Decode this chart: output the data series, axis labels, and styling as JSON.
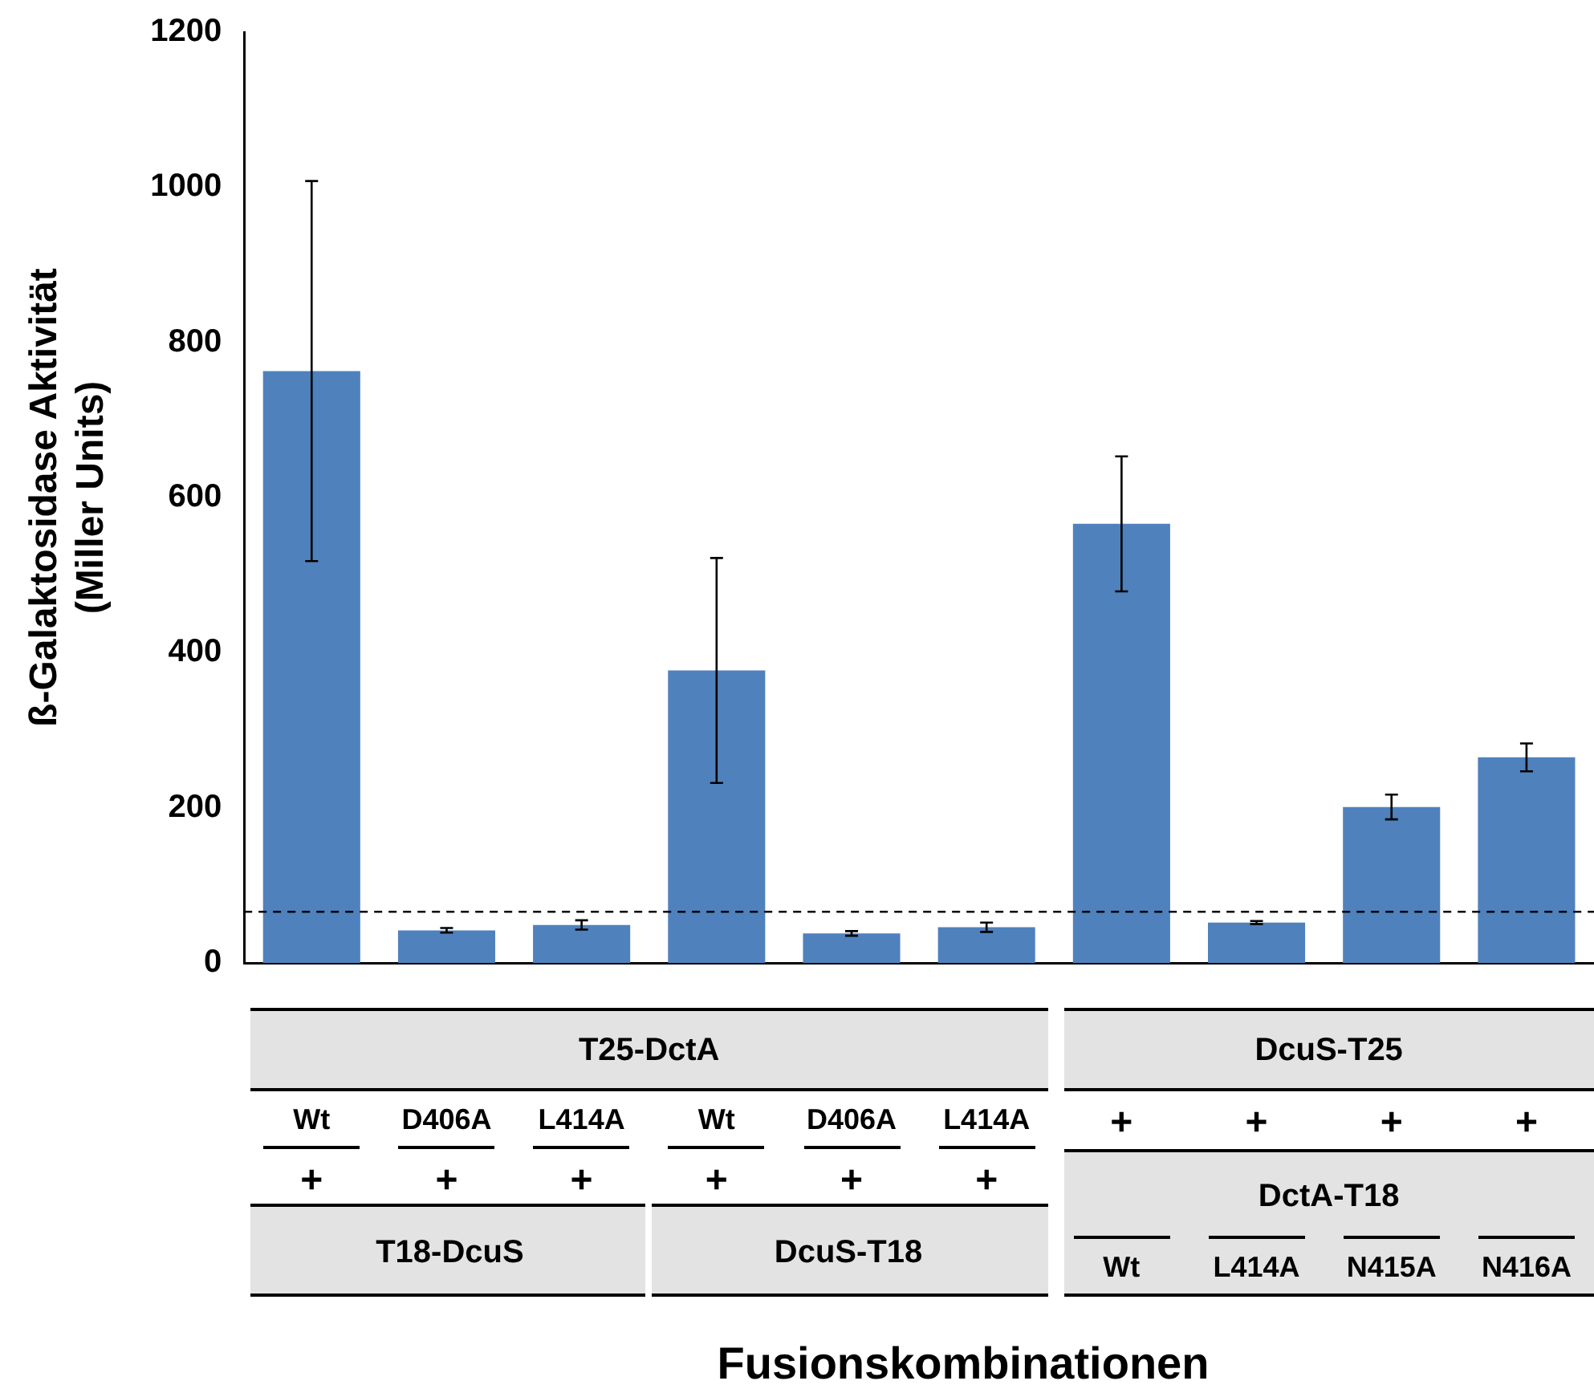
{
  "chart_data": {
    "type": "bar",
    "ylabel": "ß-Galaktosidase Aktivität\n(Miller Units)",
    "categories": [
      null,
      null,
      null,
      null,
      null,
      null,
      null,
      null,
      null,
      null
    ],
    "values": [
      763,
      42,
      49,
      377,
      38,
      46,
      566,
      52,
      201,
      265
    ],
    "errors": [
      245,
      3,
      6,
      145,
      3,
      6,
      87,
      2,
      16,
      18
    ],
    "color": "#4f81bd",
    "ylim": [
      0,
      1200
    ],
    "yticks": [
      0,
      200,
      400,
      600,
      800,
      1000,
      1200
    ],
    "grid": false,
    "tick_labels": "y",
    "ref_lines": [
      {
        "axis": "y",
        "value": 66,
        "color": "#000000",
        "line_style": "dashed"
      }
    ],
    "annotations": [
      "T25-DctA",
      "Wt",
      "D406A",
      "L414A",
      "Wt",
      "D406A",
      "L414A",
      "+",
      "+",
      "+",
      "+",
      "+",
      "+",
      "T18-DcuS",
      "DcuS-T18",
      "DcuS-T25",
      "+",
      "+",
      "+",
      "+",
      "DctA-T18",
      "Wt",
      "L414A",
      "N415A",
      "N416A",
      "Fusionskombinationen"
    ]
  }
}
